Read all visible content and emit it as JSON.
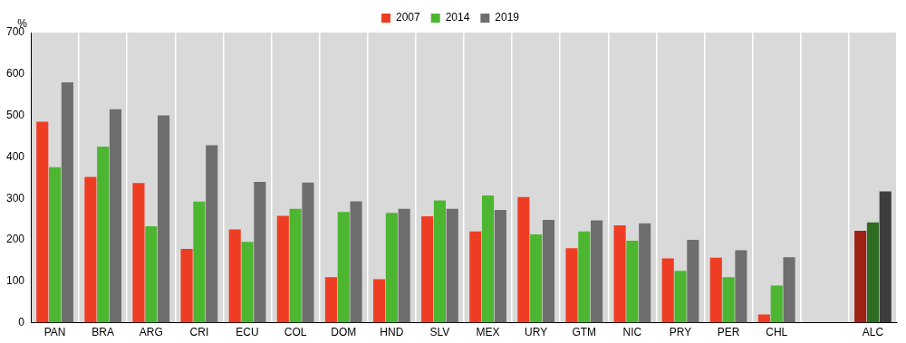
{
  "chart_data": {
    "type": "bar",
    "y_axis_label": "%",
    "categories": [
      "PAN",
      "BRA",
      "ARG",
      "CRI",
      "ECU",
      "COL",
      "DOM",
      "HND",
      "SLV",
      "MEX",
      "URY",
      "GTM",
      "NIC",
      "PRY",
      "PER",
      "CHL",
      null,
      "ALC"
    ],
    "series": [
      {
        "name": "2007",
        "color": "#ee3d23",
        "colors": [
          "#ee3d23",
          "#ee3d23",
          "#ee3d23",
          "#ee3d23",
          "#ee3d23",
          "#ee3d23",
          "#ee3d23",
          "#ee3d23",
          "#ee3d23",
          "#ee3d23",
          "#ee3d23",
          "#ee3d23",
          "#ee3d23",
          "#ee3d23",
          "#ee3d23",
          "#ee3d23",
          "#ee3d23",
          "#9e2316"
        ],
        "values": [
          485,
          352,
          337,
          178,
          225,
          258,
          110,
          105,
          257,
          220,
          303,
          180,
          235,
          155,
          157,
          20,
          null,
          222
        ]
      },
      {
        "name": "2014",
        "color": "#4cb631",
        "colors": [
          "#4cb631",
          "#4cb631",
          "#4cb631",
          "#4cb631",
          "#4cb631",
          "#4cb631",
          "#4cb631",
          "#4cb631",
          "#4cb631",
          "#4cb631",
          "#4cb631",
          "#4cb631",
          "#4cb631",
          "#4cb631",
          "#4cb631",
          "#4cb631",
          "#4cb631",
          "#2e6e22"
        ],
        "values": [
          375,
          425,
          233,
          292,
          195,
          275,
          267,
          265,
          295,
          307,
          213,
          220,
          198,
          125,
          110,
          90,
          null,
          242
        ]
      },
      {
        "name": "2019",
        "color": "#6e6e6e",
        "colors": [
          "#6e6e6e",
          "#6e6e6e",
          "#6e6e6e",
          "#6e6e6e",
          "#6e6e6e",
          "#6e6e6e",
          "#6e6e6e",
          "#6e6e6e",
          "#6e6e6e",
          "#6e6e6e",
          "#6e6e6e",
          "#6e6e6e",
          "#6e6e6e",
          "#6e6e6e",
          "#6e6e6e",
          "#6e6e6e",
          "#6e6e6e",
          "#3d3d3d"
        ],
        "values": [
          580,
          515,
          500,
          428,
          340,
          338,
          293,
          275,
          275,
          272,
          248,
          247,
          240,
          200,
          175,
          158,
          null,
          317
        ]
      }
    ],
    "ylim": [
      0,
      700
    ],
    "yticks": [
      0,
      100,
      200,
      300,
      400,
      500,
      600,
      700
    ],
    "grid": true,
    "legend": "top"
  }
}
